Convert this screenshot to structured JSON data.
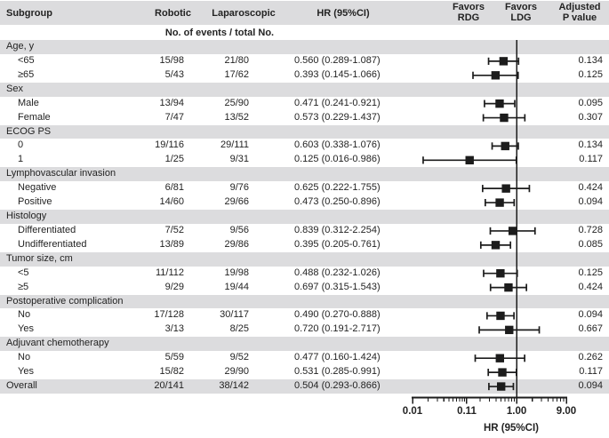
{
  "header": {
    "subgroup": "Subgroup",
    "robotic": "Robotic",
    "laparoscopic": "Laparoscopic",
    "hr": "HR (95%CI)",
    "events_note": "No. of events / total No.",
    "favors_rdg": [
      "Favors",
      "RDG"
    ],
    "favors_ldg": [
      "Favors",
      "LDG"
    ],
    "adjusted_p": [
      "Adjusted",
      "P value"
    ]
  },
  "colors": {
    "band": "#dcdcde",
    "text": "#232323",
    "marker": "#1c1c1c"
  },
  "chart_data": {
    "type": "scatter",
    "variant": "forest-plot",
    "xlabel": "HR (95%CI)",
    "xscale": "log",
    "xlim": [
      0.01,
      9.0
    ],
    "reference_line": 1.0,
    "favors": {
      "left": "Favors RDG",
      "right": "Favors LDG"
    },
    "x_ticks": [
      {
        "label": "0.01",
        "value": 0.01
      },
      {
        "label": "0.11",
        "value": 0.11
      },
      {
        "label": "1.00",
        "value": 1.0
      },
      {
        "label": "9.00",
        "value": 9.0
      }
    ],
    "rows": [
      {
        "type": "group",
        "label": "Age, y"
      },
      {
        "type": "item",
        "label": "<65",
        "robotic": "15/98",
        "laparoscopic": "21/80",
        "hr_text": "0.560 (0.289-1.087)",
        "hr": 0.56,
        "lo": 0.289,
        "hi": 1.087,
        "p": "0.134"
      },
      {
        "type": "item",
        "label": "≥65",
        "robotic": "5/43",
        "laparoscopic": "17/62",
        "hr_text": "0.393 (0.145-1.066)",
        "hr": 0.393,
        "lo": 0.145,
        "hi": 1.066,
        "p": "0.125"
      },
      {
        "type": "group",
        "label": "Sex"
      },
      {
        "type": "item",
        "label": "Male",
        "robotic": "13/94",
        "laparoscopic": "25/90",
        "hr_text": "0.471 (0.241-0.921)",
        "hr": 0.471,
        "lo": 0.241,
        "hi": 0.921,
        "p": "0.095"
      },
      {
        "type": "item",
        "label": "Female",
        "robotic": "7/47",
        "laparoscopic": "13/52",
        "hr_text": "0.573 (0.229-1.437)",
        "hr": 0.573,
        "lo": 0.229,
        "hi": 1.437,
        "p": "0.307"
      },
      {
        "type": "group",
        "label": "ECOG PS"
      },
      {
        "type": "item",
        "label": "0",
        "robotic": "19/116",
        "laparoscopic": "29/111",
        "hr_text": "0.603 (0.338-1.076)",
        "hr": 0.603,
        "lo": 0.338,
        "hi": 1.076,
        "p": "0.134"
      },
      {
        "type": "item",
        "label": "1",
        "robotic": "1/25",
        "laparoscopic": "9/31",
        "hr_text": "0.125 (0.016-0.986)",
        "hr": 0.125,
        "lo": 0.016,
        "hi": 0.986,
        "p": "0.117"
      },
      {
        "type": "group",
        "label": "Lymphovascular invasion"
      },
      {
        "type": "item",
        "label": "Negative",
        "robotic": "6/81",
        "laparoscopic": "9/76",
        "hr_text": "0.625 (0.222-1.755)",
        "hr": 0.625,
        "lo": 0.222,
        "hi": 1.755,
        "p": "0.424"
      },
      {
        "type": "item",
        "label": "Positive",
        "robotic": "14/60",
        "laparoscopic": "29/66",
        "hr_text": "0.473 (0.250-0.896)",
        "hr": 0.473,
        "lo": 0.25,
        "hi": 0.896,
        "p": "0.094"
      },
      {
        "type": "group",
        "label": "Histology"
      },
      {
        "type": "item",
        "label": "Differentiated",
        "robotic": "7/52",
        "laparoscopic": "9/56",
        "hr_text": "0.839 (0.312-2.254)",
        "hr": 0.839,
        "lo": 0.312,
        "hi": 2.254,
        "p": "0.728"
      },
      {
        "type": "item",
        "label": "Undifferentiated",
        "robotic": "13/89",
        "laparoscopic": "29/86",
        "hr_text": "0.395 (0.205-0.761)",
        "hr": 0.395,
        "lo": 0.205,
        "hi": 0.761,
        "p": "0.085"
      },
      {
        "type": "group",
        "label": "Tumor size, cm"
      },
      {
        "type": "item",
        "label": "<5",
        "robotic": "11/112",
        "laparoscopic": "19/98",
        "hr_text": "0.488 (0.232-1.026)",
        "hr": 0.488,
        "lo": 0.232,
        "hi": 1.026,
        "p": "0.125"
      },
      {
        "type": "item",
        "label": "≥5",
        "robotic": "9/29",
        "laparoscopic": "19/44",
        "hr_text": "0.697 (0.315-1.543)",
        "hr": 0.697,
        "lo": 0.315,
        "hi": 1.543,
        "p": "0.424"
      },
      {
        "type": "group",
        "label": "Postoperative complication"
      },
      {
        "type": "item",
        "label": "No",
        "robotic": "17/128",
        "laparoscopic": "30/117",
        "hr_text": "0.490 (0.270-0.888)",
        "hr": 0.49,
        "lo": 0.27,
        "hi": 0.888,
        "p": "0.094"
      },
      {
        "type": "item",
        "label": "Yes",
        "robotic": "3/13",
        "laparoscopic": "8/25",
        "hr_text": "0.720 (0.191-2.717)",
        "hr": 0.72,
        "lo": 0.191,
        "hi": 2.717,
        "p": "0.667"
      },
      {
        "type": "group",
        "label": "Adjuvant chemotherapy"
      },
      {
        "type": "item",
        "label": "No",
        "robotic": "5/59",
        "laparoscopic": "9/52",
        "hr_text": "0.477 (0.160-1.424)",
        "hr": 0.477,
        "lo": 0.16,
        "hi": 1.424,
        "p": "0.262"
      },
      {
        "type": "item",
        "label": "Yes",
        "robotic": "15/82",
        "laparoscopic": "29/90",
        "hr_text": "0.531 (0.285-0.991)",
        "hr": 0.531,
        "lo": 0.285,
        "hi": 0.991,
        "p": "0.117"
      },
      {
        "type": "overall",
        "label": "Overall",
        "robotic": "20/141",
        "laparoscopic": "38/142",
        "hr_text": "0.504 (0.293-0.866)",
        "hr": 0.504,
        "lo": 0.293,
        "hi": 0.866,
        "p": "0.094"
      }
    ]
  }
}
